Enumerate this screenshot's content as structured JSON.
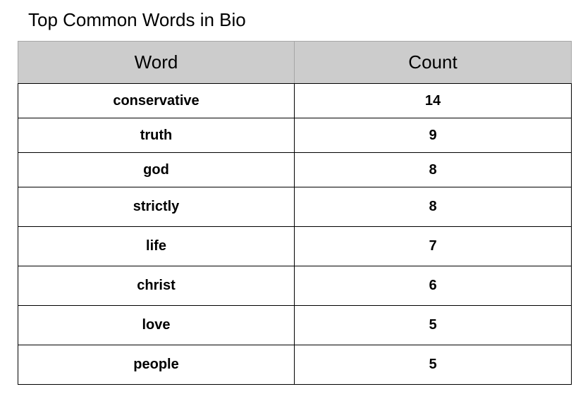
{
  "chart_data": {
    "type": "table",
    "title": "Top Common Words in Bio",
    "columns": [
      "Word",
      "Count"
    ],
    "rows": [
      {
        "word": "conservative",
        "count": "14"
      },
      {
        "word": "truth",
        "count": "9"
      },
      {
        "word": "god",
        "count": "8"
      },
      {
        "word": "strictly",
        "count": "8"
      },
      {
        "word": "life",
        "count": "7"
      },
      {
        "word": "christ",
        "count": "6"
      },
      {
        "word": "love",
        "count": "5"
      },
      {
        "word": "people",
        "count": "5"
      }
    ]
  },
  "colors": {
    "header_background": "#cccccc",
    "border": "#000000",
    "text": "#000000"
  }
}
